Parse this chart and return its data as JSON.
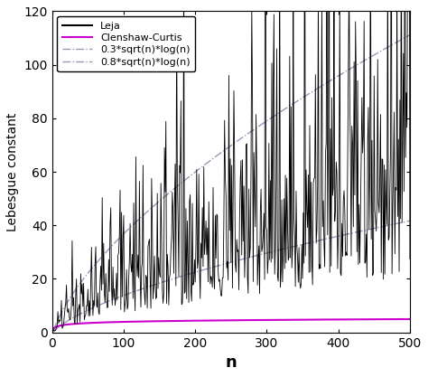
{
  "title": "",
  "xlabel": "n",
  "ylabel": "Lebesgue constant",
  "xlim": [
    0,
    500
  ],
  "ylim": [
    0,
    120
  ],
  "xticks": [
    0,
    100,
    200,
    300,
    400,
    500
  ],
  "yticks": [
    0,
    20,
    40,
    60,
    80,
    100,
    120
  ],
  "n_max": 500,
  "leja_color": "#000000",
  "cc_color": "#cc00cc",
  "bound_color": "#9999bb",
  "bound_coeff_low": 0.3,
  "bound_coeff_high": 0.8,
  "legend_entries": [
    "Leja",
    "Clenshaw-Curtis",
    "0.3*sqrt(n)*log(n)",
    "0.8*sqrt(n)*log(n)"
  ],
  "figsize": [
    4.74,
    4.17
  ],
  "dpi": 100,
  "seed": 12345
}
